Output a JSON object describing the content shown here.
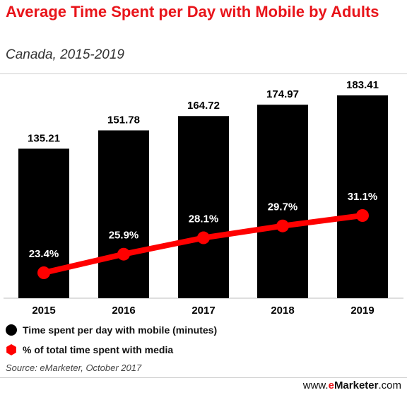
{
  "chart_data": {
    "type": "bar",
    "title": "Average Time Spent per Day with Mobile by Adults",
    "subtitle": "Canada, 2015-2019",
    "categories": [
      "2015",
      "2016",
      "2017",
      "2018",
      "2019"
    ],
    "series": [
      {
        "name": "Time spent per day with mobile (minutes)",
        "type": "bar",
        "values": [
          135.21,
          151.78,
          164.72,
          174.97,
          183.41
        ],
        "labels": [
          "135.21",
          "151.78",
          "164.72",
          "174.97",
          "183.41"
        ],
        "color": "#000000"
      },
      {
        "name": "% of total time spent with media",
        "type": "line",
        "values": [
          23.4,
          25.9,
          28.1,
          29.7,
          31.1
        ],
        "labels": [
          "23.4%",
          "25.9%",
          "28.1%",
          "29.7%",
          "31.1%"
        ],
        "color": "#ff0000"
      }
    ],
    "grid": false,
    "legend_position": "bottom-left"
  },
  "source": "Source: eMarketer, October 2017",
  "brand": {
    "prefix": "www.",
    "e": "e",
    "name": "Marketer",
    "suffix": ".com"
  },
  "colors": {
    "title": "#e8141a",
    "bars": "#000000",
    "line": "#ff0000"
  }
}
